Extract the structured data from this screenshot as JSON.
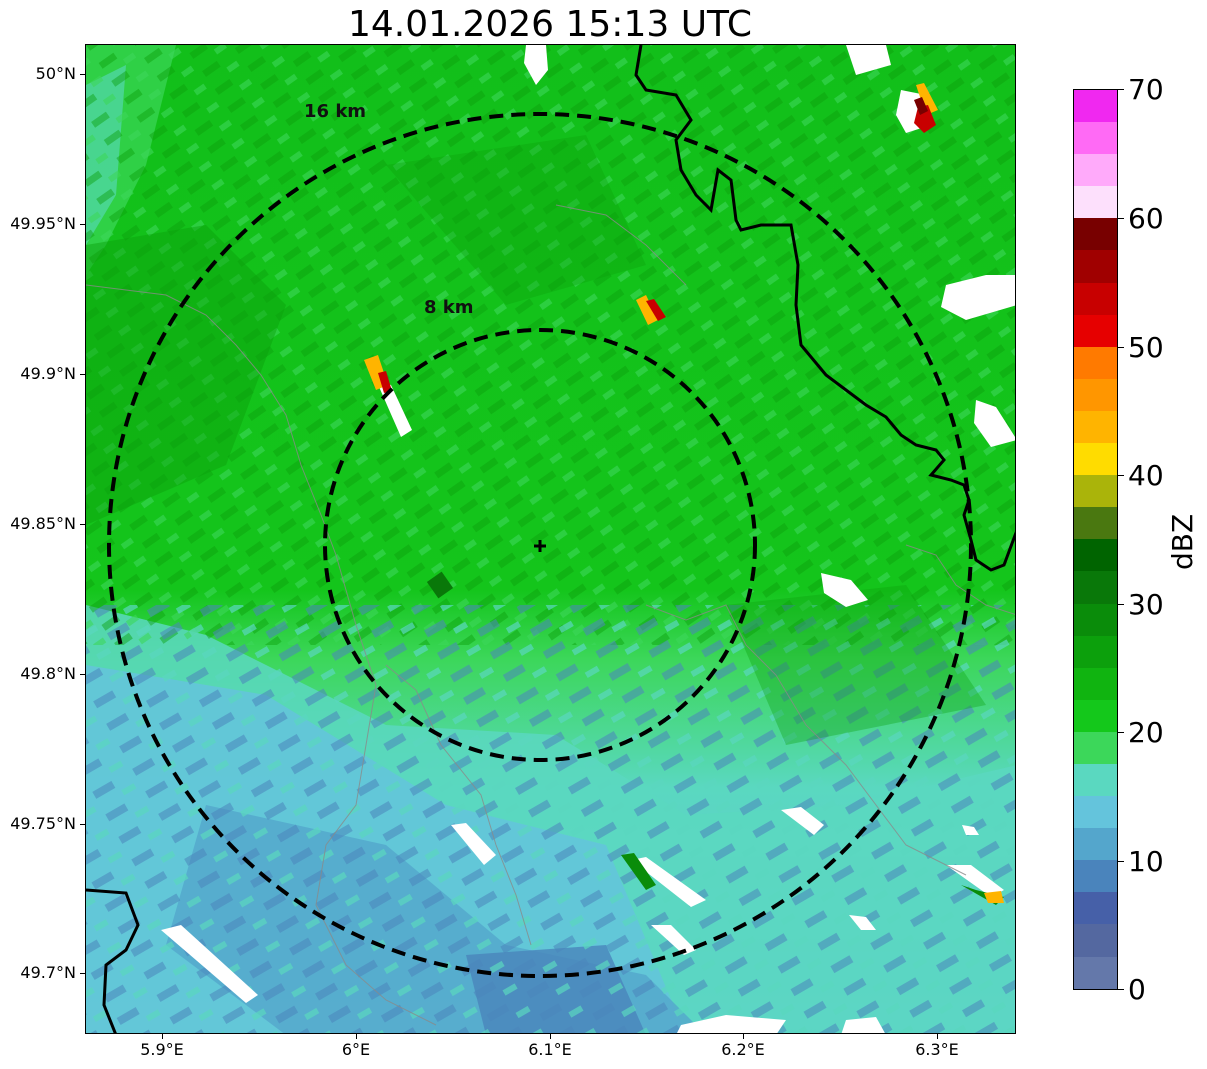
{
  "title": "14.01.2026 15:13 UTC",
  "map": {
    "lat_ticks": [
      "50°N",
      "49.95°N",
      "49.9°N",
      "49.85°N",
      "49.8°N",
      "49.75°N",
      "49.7°N"
    ],
    "lon_ticks": [
      "5.9°E",
      "6°E",
      "6.1°E",
      "6.2°E",
      "6.3°E"
    ],
    "range_rings": [
      {
        "label": "16 km"
      },
      {
        "label": "8 km"
      }
    ]
  },
  "colorbar": {
    "unit": "dBZ",
    "tick_labels": [
      "70",
      "60",
      "50",
      "40",
      "30",
      "20",
      "10",
      "0"
    ],
    "colors_top_to_bottom": [
      "#f028f0",
      "#ff6af5",
      "#ffaafa",
      "#fde0fc",
      "#780000",
      "#a00000",
      "#c80000",
      "#e60000",
      "#ff7a00",
      "#ff9600",
      "#ffb400",
      "#ffdc00",
      "#aab40a",
      "#4a7810",
      "#006400",
      "#097809",
      "#0a8c0a",
      "#0ca00c",
      "#10b410",
      "#14c81b",
      "#3cd75a",
      "#5ad8c0",
      "#64c4dc",
      "#54a6cc",
      "#4a84bc",
      "#4660a8",
      "#5468a0",
      "#6478aa"
    ]
  }
}
